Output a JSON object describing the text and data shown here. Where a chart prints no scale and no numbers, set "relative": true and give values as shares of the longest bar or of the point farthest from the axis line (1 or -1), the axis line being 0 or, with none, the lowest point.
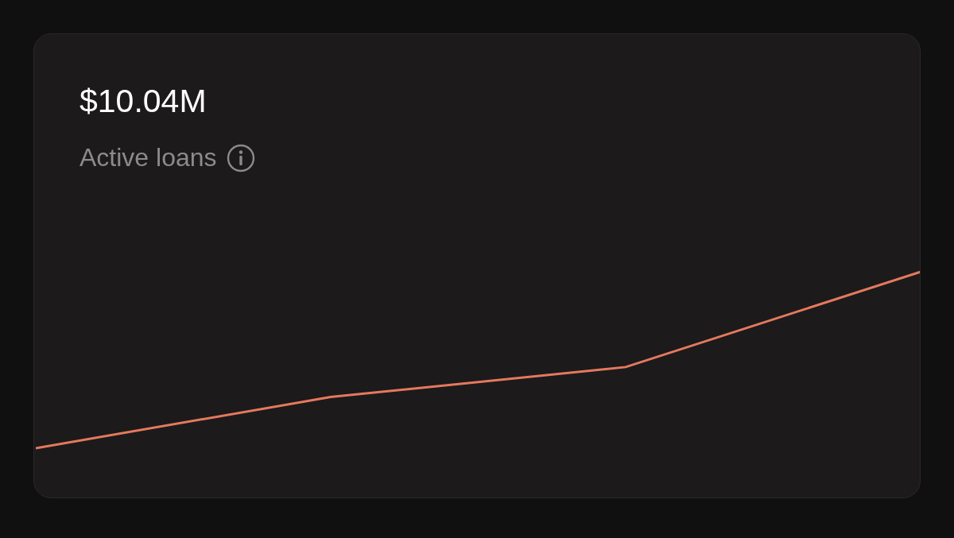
{
  "chart_data": {
    "type": "line",
    "title": "$10.04M",
    "subtitle": "Active loans",
    "categories": [
      null,
      null,
      null,
      null
    ],
    "series": [
      {
        "color": "#e5795d",
        "values": [
          0,
          0.29,
          0.46,
          1
        ]
      }
    ],
    "relative": true
  }
}
